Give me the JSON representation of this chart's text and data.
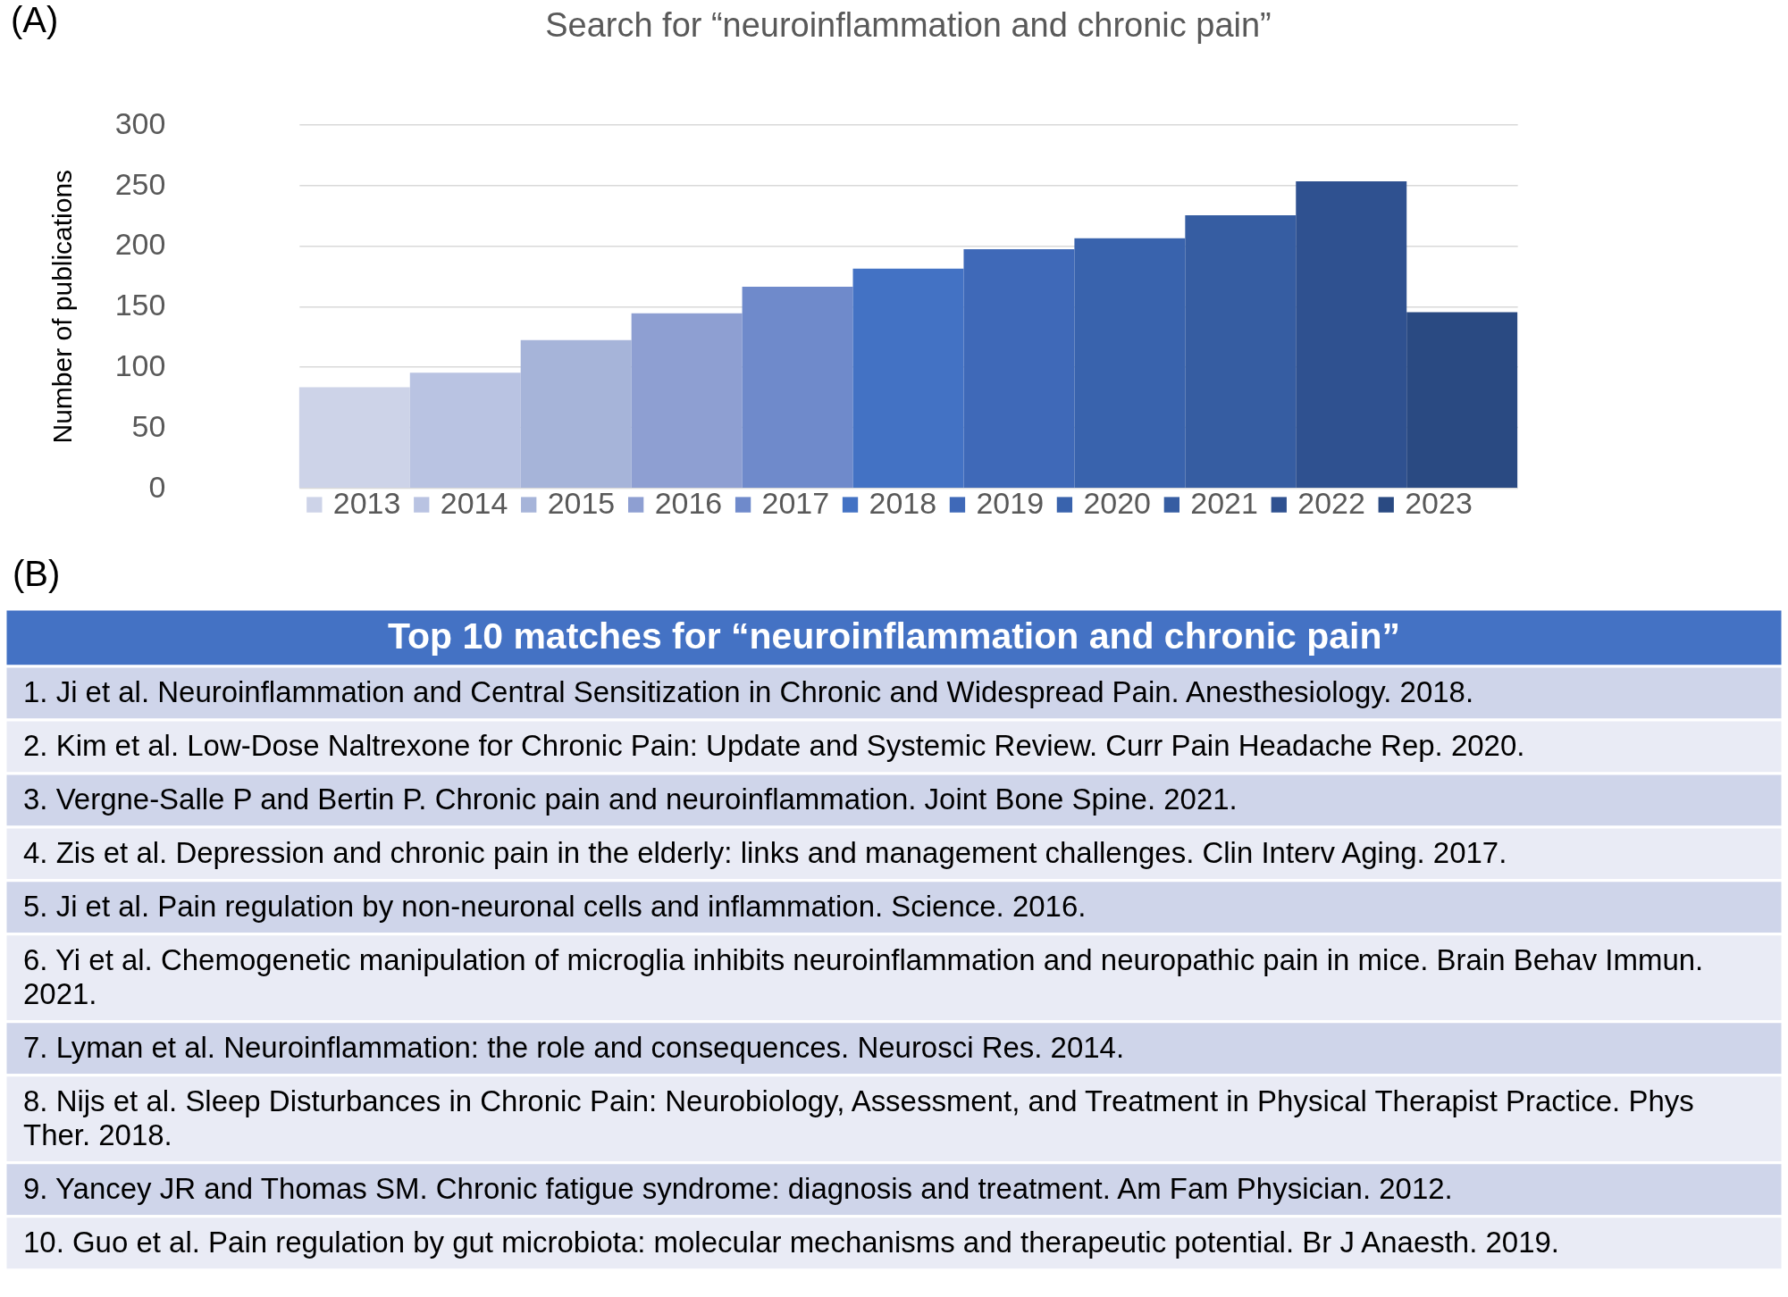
{
  "chart_data": [
    {
      "type": "bar",
      "title": "Search for “neuroinflammation and chronic pain”",
      "ylabel": "Number of publications",
      "categories": [
        null
      ],
      "series": [
        {
          "name": "2013",
          "color": "#cdd3e8",
          "values": [
            83
          ]
        },
        {
          "name": "2014",
          "color": "#b9c3e2",
          "values": [
            95
          ]
        },
        {
          "name": "2015",
          "color": "#a6b4d9",
          "values": [
            122
          ]
        },
        {
          "name": "2016",
          "color": "#8e9fd2",
          "values": [
            144
          ]
        },
        {
          "name": "2017",
          "color": "#6f8acb",
          "values": [
            166
          ]
        },
        {
          "name": "2018",
          "color": "#4372c4",
          "values": [
            181
          ]
        },
        {
          "name": "2019",
          "color": "#3f69b8",
          "values": [
            197
          ]
        },
        {
          "name": "2020",
          "color": "#3963ad",
          "values": [
            206
          ]
        },
        {
          "name": "2021",
          "color": "#365da2",
          "values": [
            225
          ]
        },
        {
          "name": "2022",
          "color": "#2f5190",
          "values": [
            253
          ]
        },
        {
          "name": "2023",
          "color": "#2a4a82",
          "values": [
            145
          ]
        }
      ],
      "ylim": [
        0,
        300
      ],
      "yticks": [
        0,
        50,
        100,
        150,
        200,
        250,
        300
      ],
      "grid": "y",
      "legend": "bottom",
      "tick_labels": "y",
      "annotations": [
        "(A)"
      ]
    },
    {
      "type": "other",
      "title": "Top 10 matches for “neuroinflammation and chronic pain”",
      "annotations": [
        "(B)",
        "1. Ji et al. Neuroinflammation and Central Sensitization in Chronic and Widespread Pain. Anesthesiology. 2018.",
        "2. Kim et al. Low-Dose Naltrexone for Chronic Pain: Update and Systemic Review. Curr Pain Headache Rep. 2020.",
        "3. Vergne-Salle P and Bertin P. Chronic pain and neuroinflammation. Joint Bone Spine. 2021.",
        "4. Zis et al. Depression and chronic pain in the elderly: links and management challenges. Clin Interv Aging. 2017.",
        "5. Ji et al. Pain regulation by non-neuronal cells and inflammation. Science. 2016.",
        "6. Yi et al. Chemogenetic manipulation of microglia inhibits neuroinflammation and neuropathic pain in mice. Brain Behav Immun. 2021.",
        "7. Lyman et al. Neuroinflammation: the role and consequences. Neurosci Res. 2014.",
        "8. Nijs et al. Sleep Disturbances in Chronic Pain: Neurobiology, Assessment, and Treatment in Physical Therapist Practice. Phys Ther. 2018.",
        "9. Yancey JR and Thomas SM. Chronic fatigue syndrome: diagnosis and treatment. Am Fam Physician. 2012.",
        "10. Guo et al. Pain regulation by gut microbiota: molecular mechanisms and therapeutic potential. Br J Anaesth. 2019."
      ]
    }
  ]
}
